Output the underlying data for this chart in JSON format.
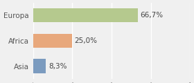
{
  "categories": [
    "Europa",
    "Africa",
    "Asia"
  ],
  "values": [
    66.7,
    25.0,
    8.3
  ],
  "labels": [
    "66,7%",
    "25,0%",
    "8,3%"
  ],
  "bar_colors": [
    "#b5c98e",
    "#e8a87c",
    "#7b9bbf"
  ],
  "background_color": "#f0f0f0",
  "xlim": [
    0,
    100
  ],
  "bar_height": 0.55,
  "label_fontsize": 7.5,
  "tick_fontsize": 7.5,
  "grid_color": "#ffffff",
  "grid_linewidth": 1.0,
  "label_color": "#444444",
  "tick_color": "#555555"
}
